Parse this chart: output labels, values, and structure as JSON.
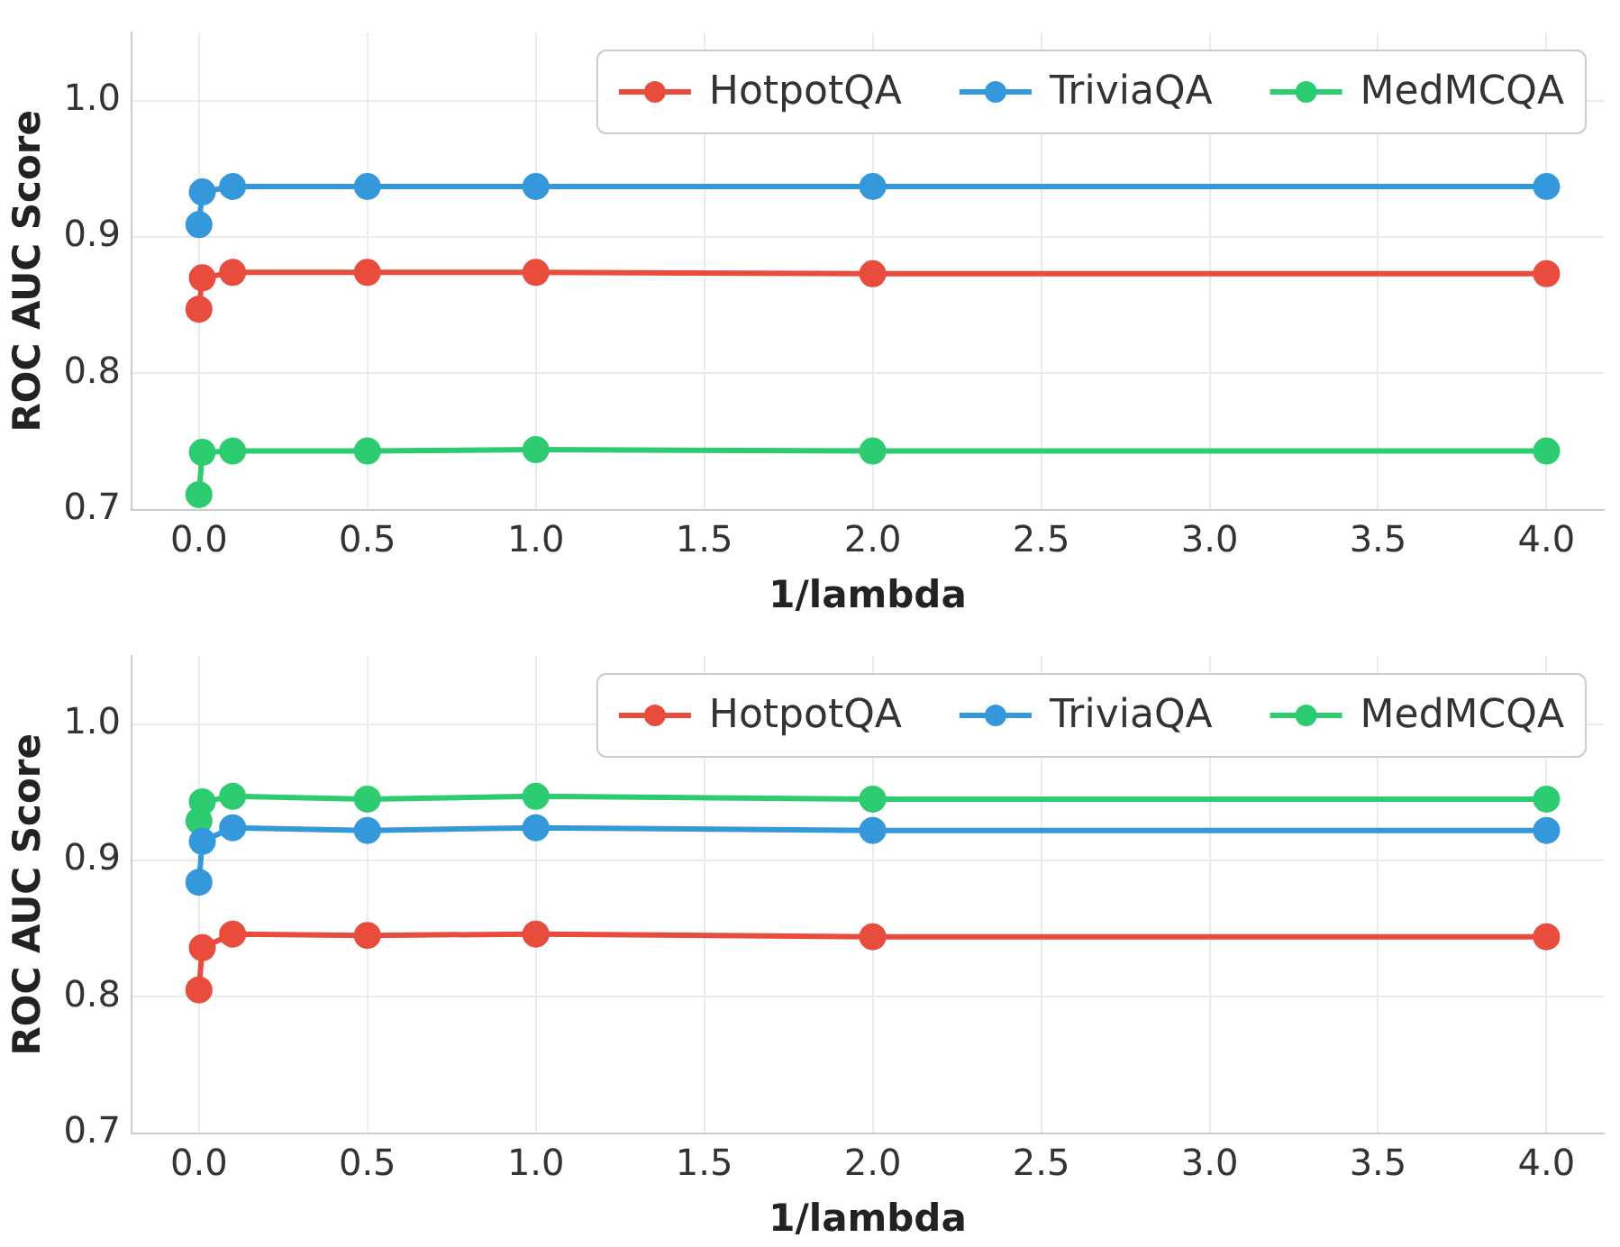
{
  "chart_data": [
    {
      "type": "line",
      "xlabel": "1/lambda",
      "ylabel": "ROC AUC Score",
      "x": [
        0,
        0.01,
        0.1,
        0.5,
        1,
        2,
        4
      ],
      "series": [
        {
          "name": "HotpotQA",
          "color": "#e74c3c",
          "values": [
            0.847,
            0.87,
            0.874,
            0.874,
            0.874,
            0.873,
            0.873
          ]
        },
        {
          "name": "TriviaQA",
          "color": "#3498db",
          "values": [
            0.909,
            0.933,
            0.937,
            0.937,
            0.937,
            0.937,
            0.937
          ]
        },
        {
          "name": "MedMCQA",
          "color": "#2ecc71",
          "values": [
            0.711,
            0.742,
            0.743,
            0.743,
            0.744,
            0.743,
            0.743
          ]
        }
      ],
      "xlim": [
        -0.2,
        4.17
      ],
      "xticks": [
        {
          "value": 0,
          "label": "0.0"
        },
        0.5,
        {
          "value": 1,
          "label": "1.0"
        },
        1.5,
        {
          "value": 2,
          "label": "2.0"
        },
        2.5,
        {
          "value": 3,
          "label": "3.0"
        },
        3.5,
        {
          "value": 4,
          "label": "4.0"
        }
      ],
      "ylim": [
        0.7,
        1.05
      ],
      "yticks": [
        0.7,
        0.8,
        0.9,
        {
          "value": 1,
          "label": "1.0"
        }
      ],
      "grid": true,
      "legend": "top right",
      "marker": "circle",
      "line_style": "solid"
    },
    {
      "type": "line",
      "xlabel": "1/lambda",
      "ylabel": "ROC AUC Score",
      "x": [
        0,
        0.01,
        0.1,
        0.5,
        1,
        2,
        4
      ],
      "series": [
        {
          "name": "HotpotQA",
          "color": "#e74c3c",
          "values": [
            0.805,
            0.836,
            0.846,
            0.845,
            0.846,
            0.844,
            0.844
          ]
        },
        {
          "name": "TriviaQA",
          "color": "#3498db",
          "values": [
            0.884,
            0.914,
            0.924,
            0.922,
            0.924,
            0.922,
            0.922
          ]
        },
        {
          "name": "MedMCQA",
          "color": "#2ecc71",
          "values": [
            0.929,
            0.943,
            0.947,
            0.945,
            0.947,
            0.945,
            0.945
          ]
        }
      ],
      "xlim": [
        -0.2,
        4.17
      ],
      "xticks": [
        {
          "value": 0,
          "label": "0.0"
        },
        0.5,
        {
          "value": 1,
          "label": "1.0"
        },
        1.5,
        {
          "value": 2,
          "label": "2.0"
        },
        2.5,
        {
          "value": 3,
          "label": "3.0"
        },
        3.5,
        {
          "value": 4,
          "label": "4.0"
        }
      ],
      "ylim": [
        0.7,
        1.05
      ],
      "yticks": [
        0.7,
        0.8,
        0.9,
        {
          "value": 1,
          "label": "1.0"
        }
      ],
      "grid": true,
      "legend": "top right",
      "marker": "circle",
      "line_style": "solid"
    }
  ]
}
